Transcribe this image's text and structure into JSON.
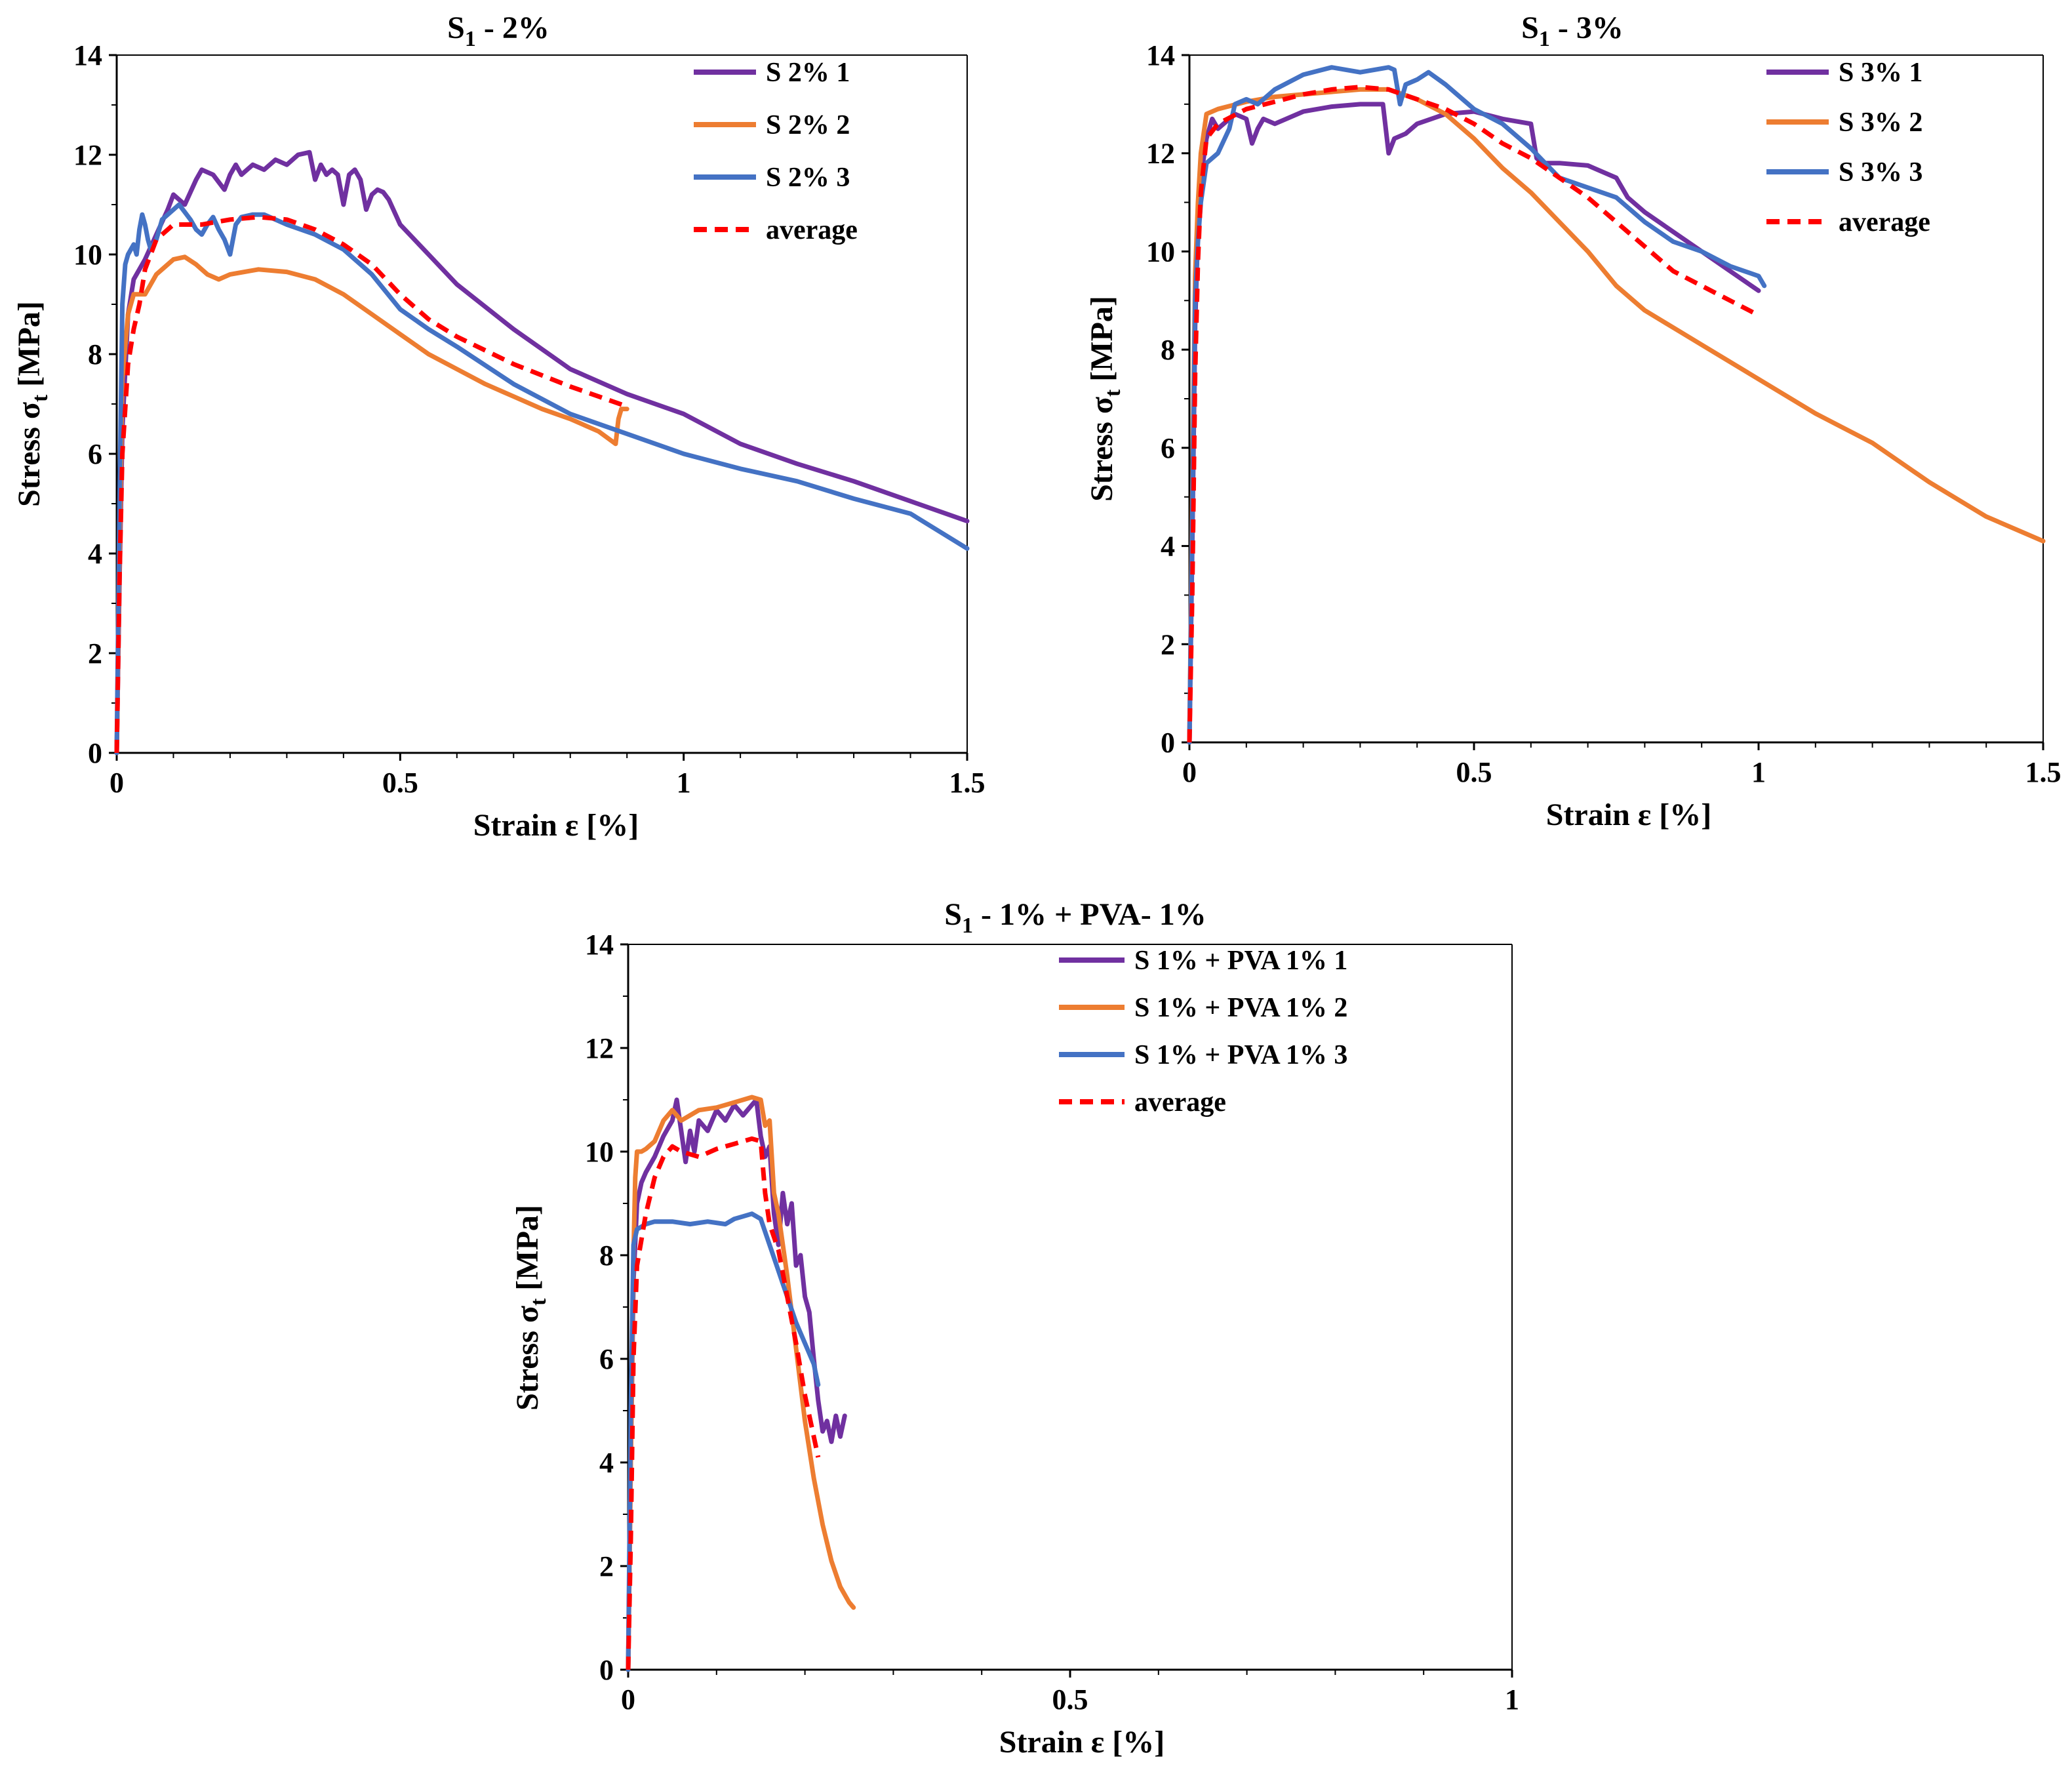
{
  "chart_data": [
    {
      "type": "line",
      "title": "S1 -  2%",
      "title_main": "S",
      "title_sub": "1",
      "title_rest": " -  2%",
      "xlabel": "Strain ε  [%]",
      "ylabel": "Stress σt [MPa]",
      "ylabel_main": "Stress σ",
      "ylabel_sub": "t",
      "ylabel_rest": " [MPa]",
      "xlim": [
        0,
        1.5
      ],
      "ylim": [
        0,
        14
      ],
      "xticks": [
        0,
        0.5,
        1,
        1.5
      ],
      "xtick_labels": [
        "0",
        "0.5",
        "1",
        "1.5"
      ],
      "yticks": [
        0,
        2,
        4,
        6,
        8,
        10,
        12,
        14
      ],
      "ytick_labels": [
        "0",
        "2",
        "4",
        "6",
        "8",
        "10",
        "12",
        "14"
      ],
      "legend_position": "top-right",
      "series": [
        {
          "name": "S 2% 1",
          "color": "#7030a0",
          "dashed": false,
          "x": [
            0,
            0.005,
            0.01,
            0.02,
            0.03,
            0.05,
            0.07,
            0.09,
            0.1,
            0.12,
            0.14,
            0.15,
            0.17,
            0.19,
            0.2,
            0.21,
            0.22,
            0.24,
            0.26,
            0.28,
            0.3,
            0.32,
            0.34,
            0.35,
            0.36,
            0.37,
            0.38,
            0.39,
            0.4,
            0.41,
            0.42,
            0.43,
            0.44,
            0.45,
            0.46,
            0.47,
            0.48,
            0.5,
            0.55,
            0.6,
            0.7,
            0.8,
            0.9,
            1.0,
            1.1,
            1.2,
            1.3,
            1.4,
            1.5
          ],
          "y": [
            0,
            3.5,
            6.5,
            8.8,
            9.5,
            9.9,
            10.4,
            10.9,
            11.2,
            11.0,
            11.5,
            11.7,
            11.6,
            11.3,
            11.6,
            11.8,
            11.6,
            11.8,
            11.7,
            11.9,
            11.8,
            12.0,
            12.05,
            11.5,
            11.8,
            11.6,
            11.7,
            11.6,
            11.0,
            11.6,
            11.7,
            11.5,
            10.9,
            11.2,
            11.3,
            11.25,
            11.1,
            10.6,
            10.0,
            9.4,
            8.5,
            7.7,
            7.2,
            6.8,
            6.2,
            5.8,
            5.45,
            5.05,
            4.65
          ]
        },
        {
          "name": "S 2% 2",
          "color": "#ed7d31",
          "dashed": false,
          "x": [
            0,
            0.005,
            0.01,
            0.02,
            0.03,
            0.05,
            0.07,
            0.1,
            0.12,
            0.14,
            0.16,
            0.18,
            0.2,
            0.25,
            0.3,
            0.35,
            0.4,
            0.45,
            0.5,
            0.55,
            0.6,
            0.65,
            0.7,
            0.75,
            0.8,
            0.85,
            0.88,
            0.885,
            0.89,
            0.9
          ],
          "y": [
            0,
            4.0,
            7.5,
            8.8,
            9.2,
            9.2,
            9.6,
            9.9,
            9.95,
            9.8,
            9.6,
            9.5,
            9.6,
            9.7,
            9.65,
            9.5,
            9.2,
            8.8,
            8.4,
            8.0,
            7.7,
            7.4,
            7.15,
            6.9,
            6.7,
            6.45,
            6.2,
            6.7,
            6.9,
            6.9
          ]
        },
        {
          "name": "S 2% 3",
          "color": "#4472c4",
          "dashed": false,
          "x": [
            0,
            0.005,
            0.01,
            0.015,
            0.02,
            0.025,
            0.03,
            0.035,
            0.04,
            0.045,
            0.05,
            0.055,
            0.06,
            0.07,
            0.08,
            0.09,
            0.1,
            0.11,
            0.12,
            0.13,
            0.14,
            0.15,
            0.16,
            0.17,
            0.18,
            0.19,
            0.2,
            0.21,
            0.22,
            0.24,
            0.26,
            0.28,
            0.3,
            0.35,
            0.4,
            0.45,
            0.5,
            0.55,
            0.6,
            0.7,
            0.8,
            0.9,
            1.0,
            1.1,
            1.2,
            1.3,
            1.4,
            1.5
          ],
          "y": [
            0,
            5.0,
            9.0,
            9.8,
            10.0,
            10.1,
            10.2,
            10.0,
            10.5,
            10.8,
            10.6,
            10.3,
            10.1,
            10.3,
            10.7,
            10.8,
            10.9,
            11.0,
            10.85,
            10.7,
            10.5,
            10.4,
            10.6,
            10.75,
            10.5,
            10.3,
            10.0,
            10.6,
            10.75,
            10.8,
            10.8,
            10.7,
            10.6,
            10.4,
            10.1,
            9.6,
            8.9,
            8.5,
            8.15,
            7.4,
            6.8,
            6.4,
            6.0,
            5.7,
            5.45,
            5.1,
            4.8,
            4.1
          ]
        },
        {
          "name": "average",
          "color": "#ff0000",
          "dashed": true,
          "x": [
            0,
            0.005,
            0.01,
            0.02,
            0.03,
            0.04,
            0.05,
            0.07,
            0.1,
            0.15,
            0.2,
            0.25,
            0.3,
            0.35,
            0.4,
            0.45,
            0.5,
            0.55,
            0.6,
            0.7,
            0.8,
            0.85,
            0.9
          ],
          "y": [
            0,
            3.5,
            6.0,
            7.8,
            8.5,
            9.0,
            9.7,
            10.3,
            10.6,
            10.6,
            10.7,
            10.75,
            10.7,
            10.5,
            10.2,
            9.8,
            9.2,
            8.7,
            8.35,
            7.8,
            7.35,
            7.15,
            6.95
          ]
        }
      ]
    },
    {
      "type": "line",
      "title": "S1 -  3%",
      "title_main": "S",
      "title_sub": "1",
      "title_rest": " -  3%",
      "xlabel": "Strain ε  [%]",
      "ylabel": "Stress σt [MPa]",
      "ylabel_main": "Stress σ",
      "ylabel_sub": "t",
      "ylabel_rest": " [MPa]",
      "xlim": [
        0,
        1.5
      ],
      "ylim": [
        0,
        14
      ],
      "xticks": [
        0,
        0.5,
        1,
        1.5
      ],
      "xtick_labels": [
        "0",
        "0.5",
        "1",
        "1.5"
      ],
      "yticks": [
        0,
        2,
        4,
        6,
        8,
        10,
        12,
        14
      ],
      "ytick_labels": [
        "0",
        "2",
        "4",
        "6",
        "8",
        "10",
        "12",
        "14"
      ],
      "legend_position": "top-right",
      "series": [
        {
          "name": "S 3% 1",
          "color": "#7030a0",
          "dashed": false,
          "x": [
            0,
            0.005,
            0.01,
            0.015,
            0.02,
            0.03,
            0.04,
            0.05,
            0.06,
            0.08,
            0.1,
            0.11,
            0.12,
            0.13,
            0.15,
            0.2,
            0.25,
            0.3,
            0.34,
            0.35,
            0.36,
            0.38,
            0.4,
            0.45,
            0.5,
            0.55,
            0.6,
            0.61,
            0.62,
            0.65,
            0.7,
            0.75,
            0.77,
            0.8,
            0.85,
            0.9,
            0.95,
            1.0
          ],
          "y": [
            0,
            4.0,
            8.5,
            10.5,
            11.5,
            12.3,
            12.7,
            12.5,
            12.6,
            12.8,
            12.7,
            12.2,
            12.5,
            12.7,
            12.6,
            12.85,
            12.95,
            13.0,
            13.0,
            12.0,
            12.3,
            12.4,
            12.6,
            12.8,
            12.85,
            12.7,
            12.6,
            11.9,
            11.8,
            11.8,
            11.75,
            11.5,
            11.1,
            10.8,
            10.4,
            10.0,
            9.6,
            9.2
          ]
        },
        {
          "name": "S 3% 2",
          "color": "#ed7d31",
          "dashed": false,
          "x": [
            0,
            0.005,
            0.01,
            0.015,
            0.02,
            0.03,
            0.05,
            0.1,
            0.15,
            0.2,
            0.25,
            0.3,
            0.35,
            0.4,
            0.45,
            0.5,
            0.55,
            0.6,
            0.65,
            0.7,
            0.75,
            0.8,
            0.9,
            1.0,
            1.1,
            1.2,
            1.3,
            1.4,
            1.5
          ],
          "y": [
            0,
            5.0,
            9.5,
            11.0,
            12.0,
            12.8,
            12.9,
            13.05,
            13.15,
            13.2,
            13.25,
            13.3,
            13.3,
            13.1,
            12.8,
            12.3,
            11.7,
            11.2,
            10.6,
            10.0,
            9.3,
            8.8,
            8.1,
            7.4,
            6.7,
            6.1,
            5.3,
            4.6,
            4.1
          ]
        },
        {
          "name": "S 3% 3",
          "color": "#4472c4",
          "dashed": false,
          "x": [
            0,
            0.005,
            0.01,
            0.015,
            0.02,
            0.03,
            0.05,
            0.07,
            0.08,
            0.1,
            0.12,
            0.15,
            0.2,
            0.25,
            0.3,
            0.35,
            0.36,
            0.37,
            0.38,
            0.4,
            0.42,
            0.45,
            0.5,
            0.55,
            0.6,
            0.65,
            0.7,
            0.75,
            0.8,
            0.85,
            0.9,
            0.95,
            1.0,
            1.01
          ],
          "y": [
            0,
            4.5,
            9.0,
            10.2,
            11.0,
            11.8,
            12.0,
            12.5,
            13.0,
            13.1,
            13.0,
            13.3,
            13.6,
            13.75,
            13.65,
            13.75,
            13.7,
            13.0,
            13.4,
            13.5,
            13.65,
            13.4,
            12.9,
            12.6,
            12.1,
            11.5,
            11.3,
            11.1,
            10.6,
            10.2,
            10.0,
            9.7,
            9.5,
            9.3
          ]
        },
        {
          "name": "average",
          "color": "#ff0000",
          "dashed": true,
          "x": [
            0,
            0.005,
            0.01,
            0.015,
            0.02,
            0.03,
            0.05,
            0.1,
            0.15,
            0.2,
            0.25,
            0.3,
            0.35,
            0.4,
            0.45,
            0.5,
            0.55,
            0.6,
            0.65,
            0.7,
            0.75,
            0.8,
            0.85,
            0.9,
            0.95,
            1.0
          ],
          "y": [
            0,
            3.0,
            7.5,
            9.8,
            11.2,
            12.3,
            12.6,
            12.9,
            13.05,
            13.2,
            13.3,
            13.35,
            13.3,
            13.1,
            12.9,
            12.6,
            12.2,
            11.9,
            11.5,
            11.1,
            10.6,
            10.1,
            9.6,
            9.3,
            9.0,
            8.7
          ]
        }
      ]
    },
    {
      "type": "line",
      "title": "S1 -  1% + PVA- 1%",
      "title_main": "S",
      "title_sub": "1",
      "title_rest": " -  1% + PVA- 1%",
      "xlabel": "Strain ε  [%]",
      "ylabel": "Stress σt [MPa]",
      "ylabel_main": "Stress σ",
      "ylabel_sub": "t",
      "ylabel_rest": " [MPa]",
      "xlim": [
        0,
        1
      ],
      "ylim": [
        0,
        14
      ],
      "xticks": [
        0,
        0.5,
        1
      ],
      "xtick_labels": [
        "0",
        "0.5",
        "1"
      ],
      "yticks": [
        0,
        2,
        4,
        6,
        8,
        10,
        12,
        14
      ],
      "ytick_labels": [
        "0",
        "2",
        "4",
        "6",
        "8",
        "10",
        "12",
        "14"
      ],
      "legend_position": "top-right",
      "series": [
        {
          "name": "S 1% + PVA 1% 1",
          "color": "#7030a0",
          "dashed": false,
          "x": [
            0,
            0.003,
            0.006,
            0.01,
            0.015,
            0.02,
            0.03,
            0.04,
            0.05,
            0.055,
            0.06,
            0.065,
            0.07,
            0.075,
            0.08,
            0.09,
            0.1,
            0.11,
            0.12,
            0.13,
            0.14,
            0.145,
            0.15,
            0.155,
            0.16,
            0.165,
            0.17,
            0.175,
            0.18,
            0.185,
            0.19,
            0.195,
            0.2,
            0.205,
            0.21,
            0.215,
            0.22,
            0.225,
            0.23,
            0.235,
            0.24,
            0.245
          ],
          "y": [
            0,
            4.0,
            7.5,
            9.0,
            9.4,
            9.6,
            9.9,
            10.3,
            10.6,
            11.0,
            10.4,
            9.8,
            10.4,
            10.0,
            10.6,
            10.4,
            10.8,
            10.6,
            10.9,
            10.7,
            10.9,
            11.0,
            10.3,
            9.9,
            10.1,
            8.8,
            8.2,
            9.2,
            8.6,
            9.0,
            7.8,
            8.0,
            7.2,
            6.9,
            6.0,
            5.2,
            4.6,
            4.8,
            4.4,
            4.9,
            4.5,
            4.9
          ]
        },
        {
          "name": "S 1% + PVA 1% 2",
          "color": "#ed7d31",
          "dashed": false,
          "x": [
            0,
            0.003,
            0.006,
            0.008,
            0.01,
            0.015,
            0.02,
            0.03,
            0.04,
            0.05,
            0.06,
            0.07,
            0.08,
            0.1,
            0.12,
            0.14,
            0.15,
            0.155,
            0.16,
            0.165,
            0.17,
            0.18,
            0.19,
            0.2,
            0.21,
            0.22,
            0.23,
            0.24,
            0.25,
            0.255
          ],
          "y": [
            0,
            4.0,
            8.0,
            9.5,
            10.0,
            10.0,
            10.05,
            10.2,
            10.6,
            10.8,
            10.6,
            10.7,
            10.8,
            10.85,
            10.95,
            11.05,
            11.0,
            10.5,
            10.6,
            9.2,
            8.8,
            7.6,
            6.2,
            4.8,
            3.7,
            2.8,
            2.1,
            1.6,
            1.3,
            1.2
          ]
        },
        {
          "name": "S 1% + PVA 1% 3",
          "color": "#4472c4",
          "dashed": false,
          "x": [
            0,
            0.003,
            0.006,
            0.01,
            0.02,
            0.03,
            0.05,
            0.07,
            0.09,
            0.11,
            0.12,
            0.13,
            0.14,
            0.15,
            0.16,
            0.17,
            0.18,
            0.19,
            0.2,
            0.21,
            0.215
          ],
          "y": [
            0,
            5.0,
            8.2,
            8.5,
            8.6,
            8.65,
            8.65,
            8.6,
            8.65,
            8.6,
            8.7,
            8.75,
            8.8,
            8.7,
            8.2,
            7.7,
            7.2,
            6.7,
            6.3,
            5.9,
            5.5
          ]
        },
        {
          "name": "average",
          "color": "#ff0000",
          "dashed": true,
          "x": [
            0,
            0.003,
            0.006,
            0.01,
            0.02,
            0.03,
            0.04,
            0.05,
            0.06,
            0.08,
            0.1,
            0.12,
            0.14,
            0.15,
            0.155,
            0.16,
            0.17,
            0.18,
            0.19,
            0.2,
            0.21,
            0.215
          ],
          "y": [
            0,
            2.5,
            6.0,
            7.8,
            8.8,
            9.5,
            9.9,
            10.1,
            10.0,
            9.9,
            10.05,
            10.15,
            10.25,
            10.2,
            9.2,
            8.6,
            8.1,
            7.2,
            6.3,
            5.3,
            4.5,
            4.1
          ]
        }
      ]
    }
  ]
}
